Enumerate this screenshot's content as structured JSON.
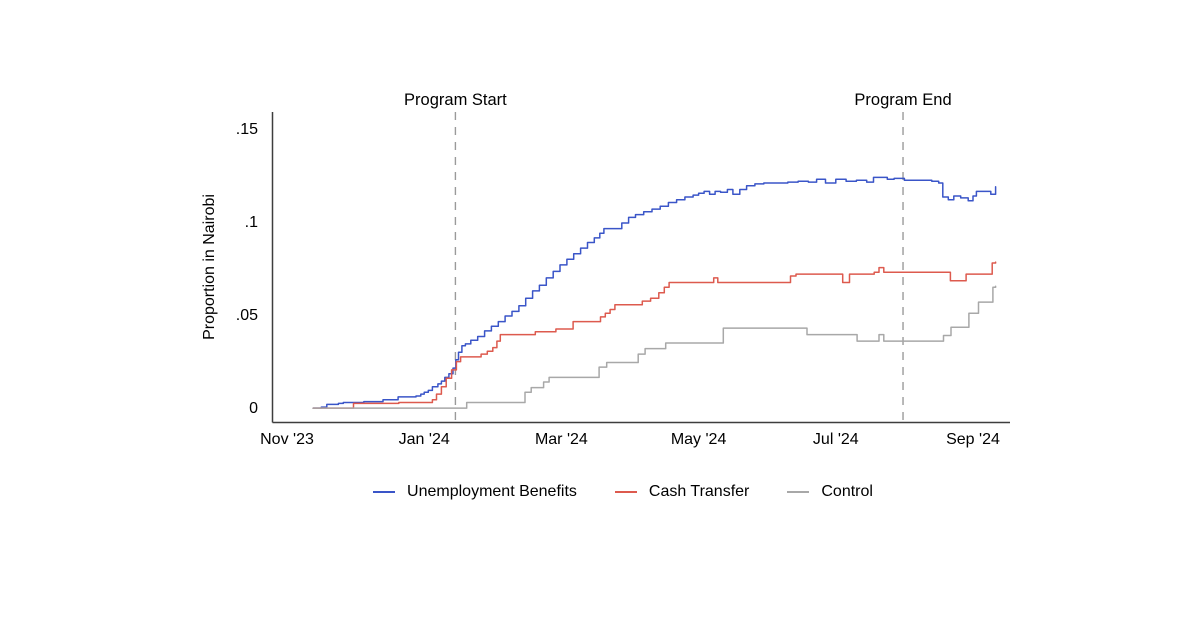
{
  "page": {
    "background": "#ffffff"
  },
  "ylabel": "Proportion in Nairobi",
  "chart_data": {
    "type": "line",
    "title": "",
    "xlabel": "",
    "ylabel": "Proportion in Nairobi",
    "grid": false,
    "legend_position": "bottom-center",
    "x_unit": "months since Nov 1, 2023",
    "xlim_months": [
      -0.2,
      10.6
    ],
    "ylim": [
      0,
      0.15
    ],
    "x_axis": {
      "ticks": [
        {
          "m": 0,
          "label": "Nov '23"
        },
        {
          "m": 2,
          "label": "Jan '24"
        },
        {
          "m": 4,
          "label": "Mar '24"
        },
        {
          "m": 6,
          "label": "May '24"
        },
        {
          "m": 8,
          "label": "Jul '24"
        },
        {
          "m": 10,
          "label": "Sep '24"
        }
      ]
    },
    "y_axis": {
      "ticks": [
        {
          "v": 0,
          "label": "0"
        },
        {
          "v": 0.05,
          "label": ".05"
        },
        {
          "v": 0.1,
          "label": ".1"
        },
        {
          "v": 0.15,
          "label": ".15"
        }
      ]
    },
    "annotations": [
      {
        "label": "Program Start",
        "m": 2.455
      },
      {
        "label": "Program End",
        "m": 8.98
      }
    ],
    "series": [
      {
        "name": "Unemployment Benefits",
        "key": "unemployment-benefits",
        "color": "#3a55c8",
        "points": [
          [
            0.38,
            0.0005
          ],
          [
            0.5,
            0.001
          ],
          [
            0.58,
            0.0025
          ],
          [
            0.75,
            0.003
          ],
          [
            0.82,
            0.0035
          ],
          [
            1.05,
            0.0035
          ],
          [
            1.12,
            0.004
          ],
          [
            1.32,
            0.004
          ],
          [
            1.4,
            0.005
          ],
          [
            1.55,
            0.005
          ],
          [
            1.62,
            0.0065
          ],
          [
            1.82,
            0.0065
          ],
          [
            1.88,
            0.007
          ],
          [
            1.95,
            0.008
          ],
          [
            2.0,
            0.009
          ],
          [
            2.06,
            0.01
          ],
          [
            2.12,
            0.012
          ],
          [
            2.2,
            0.0135
          ],
          [
            2.25,
            0.015
          ],
          [
            2.3,
            0.017
          ],
          [
            2.36,
            0.019
          ],
          [
            2.42,
            0.022
          ],
          [
            2.46,
            0.0265
          ],
          [
            2.5,
            0.0305
          ],
          [
            2.55,
            0.034
          ],
          [
            2.6,
            0.035
          ],
          [
            2.68,
            0.037
          ],
          [
            2.78,
            0.039
          ],
          [
            2.88,
            0.042
          ],
          [
            2.98,
            0.0445
          ],
          [
            3.08,
            0.047
          ],
          [
            3.18,
            0.05
          ],
          [
            3.28,
            0.0525
          ],
          [
            3.38,
            0.0555
          ],
          [
            3.48,
            0.0595
          ],
          [
            3.58,
            0.0635
          ],
          [
            3.68,
            0.0665
          ],
          [
            3.78,
            0.0705
          ],
          [
            3.88,
            0.074
          ],
          [
            3.98,
            0.0775
          ],
          [
            4.08,
            0.0805
          ],
          [
            4.18,
            0.0835
          ],
          [
            4.28,
            0.0865
          ],
          [
            4.38,
            0.0895
          ],
          [
            4.48,
            0.092
          ],
          [
            4.56,
            0.0945
          ],
          [
            4.62,
            0.097
          ],
          [
            4.78,
            0.097
          ],
          [
            4.88,
            0.1
          ],
          [
            4.98,
            0.103
          ],
          [
            5.08,
            0.1045
          ],
          [
            5.2,
            0.106
          ],
          [
            5.32,
            0.1075
          ],
          [
            5.44,
            0.109
          ],
          [
            5.56,
            0.111
          ],
          [
            5.68,
            0.1125
          ],
          [
            5.8,
            0.114
          ],
          [
            5.92,
            0.115
          ],
          [
            6.0,
            0.116
          ],
          [
            6.08,
            0.117
          ],
          [
            6.16,
            0.1155
          ],
          [
            6.24,
            0.117
          ],
          [
            6.32,
            0.1165
          ],
          [
            6.42,
            0.118
          ],
          [
            6.5,
            0.1155
          ],
          [
            6.6,
            0.118
          ],
          [
            6.7,
            0.12
          ],
          [
            6.82,
            0.121
          ],
          [
            6.95,
            0.1215
          ],
          [
            7.15,
            0.1215
          ],
          [
            7.3,
            0.122
          ],
          [
            7.45,
            0.1225
          ],
          [
            7.6,
            0.122
          ],
          [
            7.72,
            0.1235
          ],
          [
            7.85,
            0.1215
          ],
          [
            8.0,
            0.1235
          ],
          [
            8.15,
            0.1225
          ],
          [
            8.3,
            0.123
          ],
          [
            8.45,
            0.122
          ],
          [
            8.55,
            0.1245
          ],
          [
            8.68,
            0.1245
          ],
          [
            8.75,
            0.1235
          ],
          [
            8.85,
            0.124
          ],
          [
            9.0,
            0.123
          ],
          [
            9.25,
            0.123
          ],
          [
            9.4,
            0.1225
          ],
          [
            9.5,
            0.1215
          ],
          [
            9.56,
            0.114
          ],
          [
            9.64,
            0.1125
          ],
          [
            9.72,
            0.1145
          ],
          [
            9.82,
            0.1135
          ],
          [
            9.93,
            0.112
          ],
          [
            10.0,
            0.1145
          ],
          [
            10.05,
            0.117
          ],
          [
            10.22,
            0.117
          ],
          [
            10.26,
            0.1155
          ],
          [
            10.33,
            0.1195
          ]
        ]
      },
      {
        "name": "Cash Transfer",
        "key": "cash-transfer",
        "color": "#dd5a4e",
        "points": [
          [
            0.38,
            0.0005
          ],
          [
            0.9,
            0.0005
          ],
          [
            0.97,
            0.003
          ],
          [
            1.58,
            0.003
          ],
          [
            1.63,
            0.0035
          ],
          [
            2.06,
            0.0035
          ],
          [
            2.12,
            0.005
          ],
          [
            2.18,
            0.008
          ],
          [
            2.25,
            0.012
          ],
          [
            2.32,
            0.0165
          ],
          [
            2.4,
            0.021
          ],
          [
            2.47,
            0.0255
          ],
          [
            2.53,
            0.028
          ],
          [
            2.76,
            0.028
          ],
          [
            2.83,
            0.0295
          ],
          [
            2.92,
            0.031
          ],
          [
            3.0,
            0.033
          ],
          [
            3.06,
            0.0365
          ],
          [
            3.11,
            0.04
          ],
          [
            3.56,
            0.04
          ],
          [
            3.62,
            0.0415
          ],
          [
            3.86,
            0.0415
          ],
          [
            3.92,
            0.043
          ],
          [
            4.1,
            0.043
          ],
          [
            4.17,
            0.047
          ],
          [
            4.5,
            0.047
          ],
          [
            4.57,
            0.0495
          ],
          [
            4.64,
            0.0515
          ],
          [
            4.71,
            0.0535
          ],
          [
            4.78,
            0.056
          ],
          [
            5.1,
            0.056
          ],
          [
            5.18,
            0.058
          ],
          [
            5.3,
            0.0595
          ],
          [
            5.42,
            0.0625
          ],
          [
            5.5,
            0.0655
          ],
          [
            5.57,
            0.068
          ],
          [
            6.17,
            0.068
          ],
          [
            6.22,
            0.0705
          ],
          [
            6.28,
            0.068
          ],
          [
            7.27,
            0.068
          ],
          [
            7.34,
            0.0715
          ],
          [
            7.42,
            0.0725
          ],
          [
            8.04,
            0.0725
          ],
          [
            8.1,
            0.068
          ],
          [
            8.2,
            0.0725
          ],
          [
            8.56,
            0.0735
          ],
          [
            8.63,
            0.076
          ],
          [
            8.7,
            0.0735
          ],
          [
            9.6,
            0.0735
          ],
          [
            9.67,
            0.069
          ],
          [
            9.82,
            0.069
          ],
          [
            9.9,
            0.0725
          ],
          [
            10.2,
            0.0725
          ],
          [
            10.28,
            0.0785
          ],
          [
            10.33,
            0.079
          ]
        ]
      },
      {
        "name": "Control",
        "key": "control",
        "color": "#a8a8a8",
        "points": [
          [
            0.38,
            0.0005
          ],
          [
            2.55,
            0.0005
          ],
          [
            2.62,
            0.0035
          ],
          [
            3.4,
            0.0035
          ],
          [
            3.47,
            0.009
          ],
          [
            3.56,
            0.0115
          ],
          [
            3.68,
            0.0115
          ],
          [
            3.74,
            0.0145
          ],
          [
            3.82,
            0.017
          ],
          [
            4.48,
            0.017
          ],
          [
            4.55,
            0.0225
          ],
          [
            4.66,
            0.025
          ],
          [
            5.05,
            0.025
          ],
          [
            5.12,
            0.0295
          ],
          [
            5.22,
            0.0325
          ],
          [
            5.45,
            0.0325
          ],
          [
            5.52,
            0.0355
          ],
          [
            6.28,
            0.0355
          ],
          [
            6.36,
            0.0435
          ],
          [
            7.5,
            0.0435
          ],
          [
            7.58,
            0.04
          ],
          [
            8.24,
            0.04
          ],
          [
            8.31,
            0.0365
          ],
          [
            8.58,
            0.0365
          ],
          [
            8.63,
            0.04
          ],
          [
            8.7,
            0.0365
          ],
          [
            9.52,
            0.0365
          ],
          [
            9.57,
            0.0395
          ],
          [
            9.68,
            0.044
          ],
          [
            9.88,
            0.044
          ],
          [
            9.94,
            0.0515
          ],
          [
            10.04,
            0.0515
          ],
          [
            10.08,
            0.0575
          ],
          [
            10.24,
            0.0575
          ],
          [
            10.29,
            0.0655
          ],
          [
            10.33,
            0.066
          ]
        ]
      }
    ]
  },
  "legend": {
    "items": [
      {
        "label": "Unemployment Benefits",
        "color": "#3a55c8"
      },
      {
        "label": "Cash Transfer",
        "color": "#dd5a4e"
      },
      {
        "label": "Control",
        "color": "#a8a8a8"
      }
    ]
  },
  "style_colors": {
    "axis": "#3d3d3d",
    "dashed_line": "#9a9a9a",
    "text": "#000000"
  }
}
